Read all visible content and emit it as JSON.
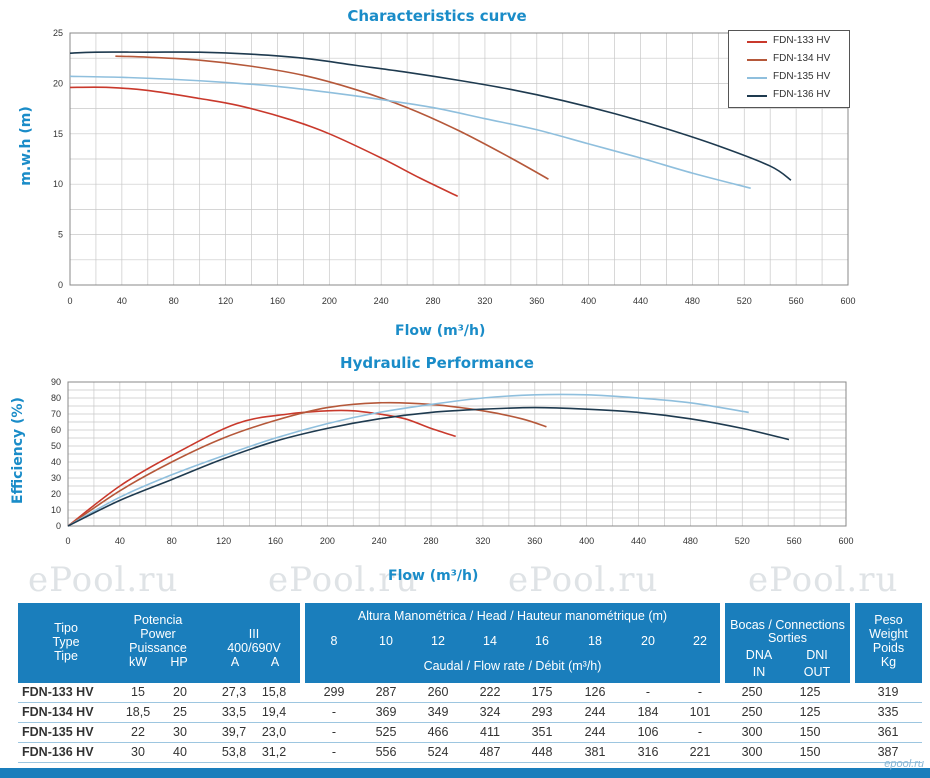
{
  "chart_data": [
    {
      "type": "line",
      "title": "Characteristics curve",
      "xlabel": "Flow (m³/h)",
      "ylabel": "m.w.h (m)",
      "xlim": [
        0,
        600
      ],
      "ylim": [
        0,
        25
      ],
      "xticks": [
        0,
        40,
        80,
        120,
        160,
        200,
        240,
        280,
        320,
        360,
        400,
        440,
        480,
        520,
        560,
        600
      ],
      "yticks": [
        0,
        5,
        10,
        15,
        20,
        25
      ],
      "grid": true,
      "legend": "top-right",
      "series": [
        {
          "name": "FDN-133 HV",
          "color": "#c9392c",
          "x": [
            0,
            30,
            60,
            100,
            130,
            170,
            200,
            240,
            270,
            299
          ],
          "y": [
            19.6,
            19.6,
            19.3,
            18.5,
            17.8,
            16.4,
            15.0,
            12.6,
            10.6,
            8.8
          ]
        },
        {
          "name": "FDN-134 HV",
          "color": "#b5583a",
          "x": [
            35,
            60,
            100,
            140,
            180,
            220,
            260,
            300,
            340,
            369
          ],
          "y": [
            22.7,
            22.6,
            22.3,
            21.7,
            20.8,
            19.4,
            17.6,
            15.3,
            12.6,
            10.5
          ]
        },
        {
          "name": "FDN-135 HV",
          "color": "#8fbfdd",
          "x": [
            0,
            40,
            80,
            120,
            160,
            200,
            240,
            280,
            320,
            360,
            400,
            440,
            480,
            525
          ],
          "y": [
            20.7,
            20.6,
            20.4,
            20.1,
            19.7,
            19.1,
            18.4,
            17.6,
            16.5,
            15.4,
            14.0,
            12.6,
            11.1,
            9.6
          ]
        },
        {
          "name": "FDN-136 HV",
          "color": "#1e3a4f",
          "x": [
            0,
            20,
            60,
            100,
            140,
            180,
            220,
            260,
            300,
            340,
            380,
            420,
            460,
            500,
            540,
            556
          ],
          "y": [
            23.0,
            23.1,
            23.1,
            23.1,
            22.9,
            22.5,
            21.8,
            21.1,
            20.3,
            19.4,
            18.3,
            17.0,
            15.5,
            13.8,
            11.8,
            10.4
          ]
        }
      ]
    },
    {
      "type": "line",
      "title": "Hydraulic Performance",
      "xlabel": "Flow (m³/h)",
      "ylabel": "Efficiency (%)",
      "xlim": [
        0,
        600
      ],
      "ylim": [
        0,
        90
      ],
      "xticks": [
        0,
        40,
        80,
        120,
        160,
        200,
        240,
        280,
        320,
        360,
        400,
        440,
        480,
        520,
        560,
        600
      ],
      "yticks": [
        0,
        10,
        20,
        30,
        40,
        50,
        60,
        70,
        80,
        90
      ],
      "grid": true,
      "series": [
        {
          "name": "FDN-133 HV",
          "color": "#c9392c",
          "x": [
            0,
            40,
            80,
            130,
            170,
            200,
            220,
            240,
            260,
            280,
            299
          ],
          "y": [
            0,
            25,
            44,
            64,
            70,
            72,
            72,
            70,
            67,
            61,
            56
          ]
        },
        {
          "name": "FDN-134 HV",
          "color": "#b5583a",
          "x": [
            0,
            40,
            80,
            120,
            160,
            200,
            240,
            280,
            320,
            350,
            369
          ],
          "y": [
            0,
            22,
            40,
            55,
            66,
            74,
            77,
            76,
            72,
            67,
            62
          ]
        },
        {
          "name": "FDN-135 HV",
          "color": "#8fbfdd",
          "x": [
            0,
            40,
            80,
            120,
            160,
            200,
            240,
            280,
            320,
            360,
            400,
            440,
            480,
            525
          ],
          "y": [
            0,
            18,
            32,
            44,
            55,
            64,
            71,
            76,
            80,
            82,
            82,
            80,
            77,
            71
          ]
        },
        {
          "name": "FDN-136 HV",
          "color": "#1e3a4f",
          "x": [
            0,
            40,
            80,
            120,
            160,
            200,
            240,
            280,
            320,
            360,
            400,
            440,
            480,
            520,
            556
          ],
          "y": [
            0,
            16,
            29,
            42,
            53,
            61,
            67,
            71,
            73,
            74,
            73,
            71,
            67,
            61,
            54
          ]
        }
      ]
    }
  ],
  "watermark_text": "ePool.ru",
  "table": {
    "headers": {
      "tipo": [
        "Tipo",
        "Type",
        "Tipe"
      ],
      "potencia": [
        "Potencia",
        "Power",
        "Puissance"
      ],
      "kw": "kW",
      "hp": "HP",
      "iii": "III",
      "voltage": "400/690V",
      "amp1": "A",
      "amp2": "A",
      "altura": "Altura Manométrica / Head / Hauteur manométrique (m)",
      "heads": [
        "8",
        "10",
        "12",
        "14",
        "16",
        "18",
        "20",
        "22"
      ],
      "caudal": "Caudal / Flow rate / Débit (m³/h)",
      "bocas": "Bocas / Connections",
      "sorties": "Sorties",
      "dna": "DNA",
      "dni": "DNI",
      "in": "IN",
      "out": "OUT",
      "peso": [
        "Peso",
        "Weight",
        "Poids",
        "Kg"
      ]
    },
    "rows": [
      {
        "name": "FDN-133 HV",
        "kw": "15",
        "hp": "20",
        "a400": "27,3",
        "a690": "15,8",
        "flows": [
          "299",
          "287",
          "260",
          "222",
          "175",
          "126",
          "-",
          "-"
        ],
        "dna": "250",
        "dni": "125",
        "weight": "319"
      },
      {
        "name": "FDN-134 HV",
        "kw": "18,5",
        "hp": "25",
        "a400": "33,5",
        "a690": "19,4",
        "flows": [
          "-",
          "369",
          "349",
          "324",
          "293",
          "244",
          "184",
          "101"
        ],
        "dna": "250",
        "dni": "125",
        "weight": "335"
      },
      {
        "name": "FDN-135 HV",
        "kw": "22",
        "hp": "30",
        "a400": "39,7",
        "a690": "23,0",
        "flows": [
          "-",
          "525",
          "466",
          "411",
          "351",
          "244",
          "106",
          "-"
        ],
        "dna": "300",
        "dni": "150",
        "weight": "361"
      },
      {
        "name": "FDN-136 HV",
        "kw": "30",
        "hp": "40",
        "a400": "53,8",
        "a690": "31,2",
        "flows": [
          "-",
          "556",
          "524",
          "487",
          "448",
          "381",
          "316",
          "221"
        ],
        "dna": "300",
        "dni": "150",
        "weight": "387"
      }
    ]
  },
  "footer_logo": "epool.ru"
}
